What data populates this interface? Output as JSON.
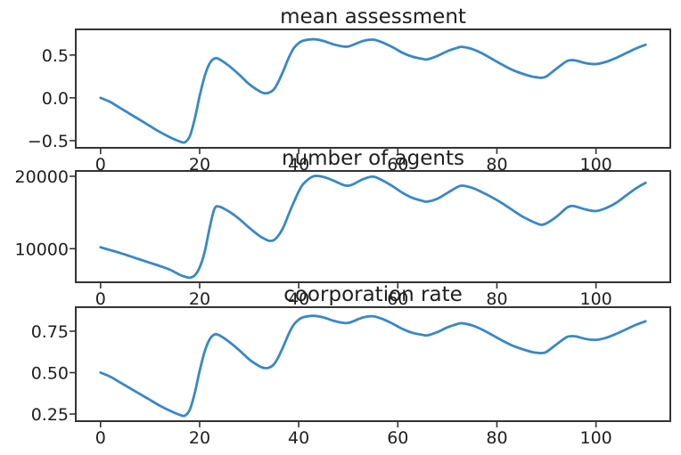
{
  "figure": {
    "background": "#ffffff",
    "line_color": "#3a87c5",
    "spine_color": "#333333",
    "text_color": "#1f1f1f"
  },
  "chart_data": [
    {
      "type": "line",
      "title": "mean assessment",
      "xlabel": "",
      "ylabel": "",
      "grid": false,
      "legend": null,
      "xlim": [
        -5,
        115
      ],
      "ylim": [
        -0.584,
        0.8
      ],
      "xticks": [
        0,
        20,
        40,
        60,
        80,
        100
      ],
      "xtick_labels": [
        "0",
        "20",
        "40",
        "60",
        "80",
        "100"
      ],
      "yticks": [
        -0.5,
        0.0,
        0.5
      ],
      "ytick_labels": [
        "−0.5",
        "0.0",
        "0.5"
      ],
      "x": [
        0,
        2,
        4,
        6,
        8,
        10,
        12,
        14,
        16,
        17,
        18,
        19,
        20,
        21,
        22,
        23,
        24,
        26,
        28,
        30,
        32,
        33,
        34,
        35,
        36,
        37,
        38,
        39,
        40,
        41,
        43,
        45,
        47,
        49,
        50,
        51,
        53,
        55,
        57,
        59,
        61,
        63,
        65,
        66,
        68,
        70,
        72,
        73,
        75,
        77,
        79,
        81,
        83,
        85,
        87,
        88,
        89,
        90,
        92,
        94,
        95,
        96,
        98,
        100,
        102,
        104,
        106,
        108,
        110
      ],
      "values": [
        0,
        -0.05,
        -0.12,
        -0.19,
        -0.26,
        -0.33,
        -0.4,
        -0.46,
        -0.51,
        -0.52,
        -0.45,
        -0.25,
        0.02,
        0.25,
        0.4,
        0.46,
        0.45,
        0.37,
        0.27,
        0.16,
        0.08,
        0.055,
        0.06,
        0.1,
        0.2,
        0.33,
        0.47,
        0.58,
        0.64,
        0.67,
        0.685,
        0.665,
        0.625,
        0.6,
        0.6,
        0.62,
        0.665,
        0.68,
        0.645,
        0.59,
        0.525,
        0.48,
        0.455,
        0.45,
        0.49,
        0.545,
        0.585,
        0.595,
        0.57,
        0.52,
        0.455,
        0.39,
        0.33,
        0.285,
        0.25,
        0.24,
        0.235,
        0.25,
        0.34,
        0.425,
        0.44,
        0.435,
        0.405,
        0.395,
        0.42,
        0.465,
        0.52,
        0.575,
        0.62
      ]
    },
    {
      "type": "line",
      "title": "number of agents",
      "xlabel": "",
      "ylabel": "",
      "grid": false,
      "legend": null,
      "xlim": [
        -5,
        115
      ],
      "ylim": [
        5366,
        20732
      ],
      "xticks": [
        0,
        20,
        40,
        60,
        80,
        100
      ],
      "xtick_labels": [
        "0",
        "20",
        "40",
        "60",
        "80",
        "100"
      ],
      "yticks": [
        10000,
        20000
      ],
      "ytick_labels": [
        "10000",
        "20000"
      ],
      "x": [
        0,
        2,
        4,
        6,
        8,
        10,
        12,
        14,
        16,
        17,
        18,
        19,
        20,
        21,
        22,
        23,
        24,
        26,
        28,
        30,
        32,
        33,
        34,
        35,
        36,
        37,
        38,
        39,
        40,
        41,
        43,
        45,
        47,
        49,
        50,
        51,
        53,
        55,
        57,
        59,
        61,
        63,
        65,
        66,
        68,
        70,
        72,
        73,
        75,
        77,
        79,
        81,
        83,
        85,
        87,
        88,
        89,
        90,
        92,
        94,
        95,
        96,
        98,
        100,
        102,
        104,
        106,
        108,
        110
      ],
      "values": [
        10200,
        9800,
        9400,
        8950,
        8500,
        8050,
        7600,
        7100,
        6400,
        6150,
        6000,
        6300,
        7400,
        9500,
        12800,
        15500,
        15800,
        15100,
        14100,
        12900,
        11800,
        11400,
        11100,
        11200,
        11900,
        13100,
        14800,
        16400,
        17900,
        19000,
        20000,
        19900,
        19400,
        18800,
        18700,
        18900,
        19600,
        19950,
        19400,
        18600,
        17700,
        17000,
        16600,
        16500,
        16900,
        17700,
        18500,
        18700,
        18400,
        17800,
        17100,
        16300,
        15400,
        14500,
        13800,
        13500,
        13300,
        13500,
        14400,
        15600,
        15900,
        15800,
        15400,
        15200,
        15600,
        16300,
        17300,
        18300,
        19100
      ]
    },
    {
      "type": "line",
      "title": "coorporation rate",
      "xlabel": "",
      "ylabel": "",
      "grid": false,
      "legend": null,
      "xlim": [
        -5,
        115
      ],
      "ylim": [
        0.207,
        0.895
      ],
      "xticks": [
        0,
        20,
        40,
        60,
        80,
        100
      ],
      "xtick_labels": [
        "0",
        "20",
        "40",
        "60",
        "80",
        "100"
      ],
      "yticks": [
        0.25,
        0.5,
        0.75
      ],
      "ytick_labels": [
        "0.25",
        "0.50",
        "0.75"
      ],
      "x": [
        0,
        2,
        4,
        6,
        8,
        10,
        12,
        14,
        16,
        17,
        18,
        19,
        20,
        21,
        22,
        23,
        24,
        26,
        28,
        30,
        32,
        33,
        34,
        35,
        36,
        37,
        38,
        39,
        40,
        41,
        43,
        45,
        47,
        49,
        50,
        51,
        53,
        55,
        57,
        59,
        61,
        63,
        65,
        66,
        68,
        70,
        72,
        73,
        75,
        77,
        79,
        81,
        83,
        85,
        87,
        88,
        89,
        90,
        92,
        94,
        95,
        96,
        98,
        100,
        102,
        104,
        106,
        108,
        110
      ],
      "values": [
        0.5,
        0.475,
        0.44,
        0.405,
        0.37,
        0.335,
        0.3,
        0.27,
        0.245,
        0.24,
        0.275,
        0.375,
        0.51,
        0.625,
        0.7,
        0.73,
        0.725,
        0.685,
        0.635,
        0.58,
        0.54,
        0.528,
        0.53,
        0.55,
        0.6,
        0.665,
        0.735,
        0.79,
        0.82,
        0.835,
        0.843,
        0.833,
        0.813,
        0.8,
        0.8,
        0.81,
        0.833,
        0.84,
        0.823,
        0.795,
        0.763,
        0.74,
        0.728,
        0.725,
        0.745,
        0.773,
        0.793,
        0.798,
        0.785,
        0.76,
        0.728,
        0.695,
        0.665,
        0.643,
        0.625,
        0.62,
        0.618,
        0.625,
        0.67,
        0.713,
        0.72,
        0.718,
        0.703,
        0.698,
        0.71,
        0.733,
        0.76,
        0.788,
        0.81
      ]
    }
  ]
}
